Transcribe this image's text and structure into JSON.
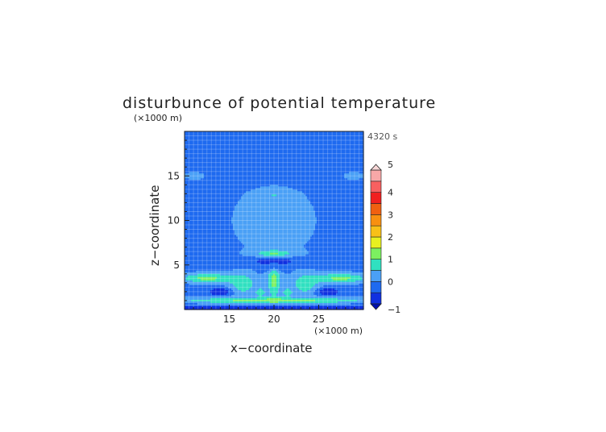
{
  "chart_data": {
    "type": "heatmap",
    "title": "disturbunce of potential temperature",
    "time_label": "4320 s",
    "xlabel": "x−coordinate",
    "ylabel": "z−coordinate",
    "x_unit": "(×1000 m)",
    "y_unit": "(×1000 m)",
    "xlim": [
      10,
      30
    ],
    "ylim": [
      0,
      20
    ],
    "x_ticks": [
      "15",
      "20",
      "25"
    ],
    "x_tick_values": [
      15,
      20,
      25
    ],
    "y_ticks": [
      "5",
      "10",
      "15"
    ],
    "y_tick_values": [
      5,
      10,
      15
    ],
    "grid": true,
    "colorbar": {
      "placement": "right",
      "levels": [
        -1,
        -0.5,
        0,
        0.5,
        1,
        1.5,
        2,
        2.5,
        3,
        3.5,
        4,
        4.5,
        5
      ],
      "tick_labels": [
        "−1",
        "0",
        "1",
        "2",
        "3",
        "4",
        "5"
      ],
      "tick_values": [
        -1,
        0,
        1,
        2,
        3,
        4,
        5
      ],
      "colors": [
        "#1030e0",
        "#1e6af0",
        "#4aa0f6",
        "#30e0c0",
        "#7cf060",
        "#e8f020",
        "#f8c018",
        "#f89010",
        "#f06010",
        "#f02020",
        "#f86060",
        "#f8a8a8"
      ],
      "under_color": "#0010b0",
      "over_color": "#f8d8d8"
    },
    "features": [
      {
        "x": 20,
        "z": 10,
        "sx": 12,
        "sz": 10,
        "amp": 0.35
      },
      {
        "x": 20,
        "z": 12.8,
        "sx": 1.6,
        "sz": 0.35,
        "amp": 0.5
      },
      {
        "x": 11,
        "z": 15,
        "sx": 1.2,
        "sz": 0.45,
        "amp": 0.35
      },
      {
        "x": 29,
        "z": 15,
        "sx": 1.2,
        "sz": 0.45,
        "amp": 0.35
      },
      {
        "x": 20,
        "z": 5.4,
        "sx": 2.4,
        "sz": 0.45,
        "amp": -0.9
      },
      {
        "x": 20,
        "z": 6.3,
        "sx": 2.0,
        "sz": 0.4,
        "amp": 1.0
      },
      {
        "x": 12.5,
        "z": 3.5,
        "sx": 3.0,
        "sz": 0.55,
        "amp": 1.3
      },
      {
        "x": 27.5,
        "z": 3.5,
        "sx": 3.0,
        "sz": 0.55,
        "amp": 1.3
      },
      {
        "x": 16.5,
        "z": 2.8,
        "sx": 1.4,
        "sz": 1.1,
        "amp": 1.0
      },
      {
        "x": 23.5,
        "z": 2.8,
        "sx": 1.4,
        "sz": 1.1,
        "amp": 1.0
      },
      {
        "x": 20,
        "z": 3.2,
        "sx": 0.7,
        "sz": 1.8,
        "amp": 1.3
      },
      {
        "x": 20,
        "z": 4.6,
        "sx": 1.2,
        "sz": 0.4,
        "amp": -0.6
      },
      {
        "x": 20,
        "z": 1.0,
        "sx": 12,
        "sz": 0.35,
        "amp": 1.3
      },
      {
        "x": 20,
        "z": 0.2,
        "sx": 12,
        "sz": 0.3,
        "amp": -0.7
      },
      {
        "x": 14,
        "z": 2.0,
        "sx": 1.2,
        "sz": 0.4,
        "amp": -0.9
      },
      {
        "x": 26,
        "z": 2.0,
        "sx": 1.2,
        "sz": 0.4,
        "amp": -0.9
      },
      {
        "x": 18.5,
        "z": 1.9,
        "sx": 0.6,
        "sz": 0.5,
        "amp": 0.9
      },
      {
        "x": 21.5,
        "z": 1.9,
        "sx": 0.6,
        "sz": 0.5,
        "amp": 0.9
      }
    ],
    "base_value": -0.3
  }
}
